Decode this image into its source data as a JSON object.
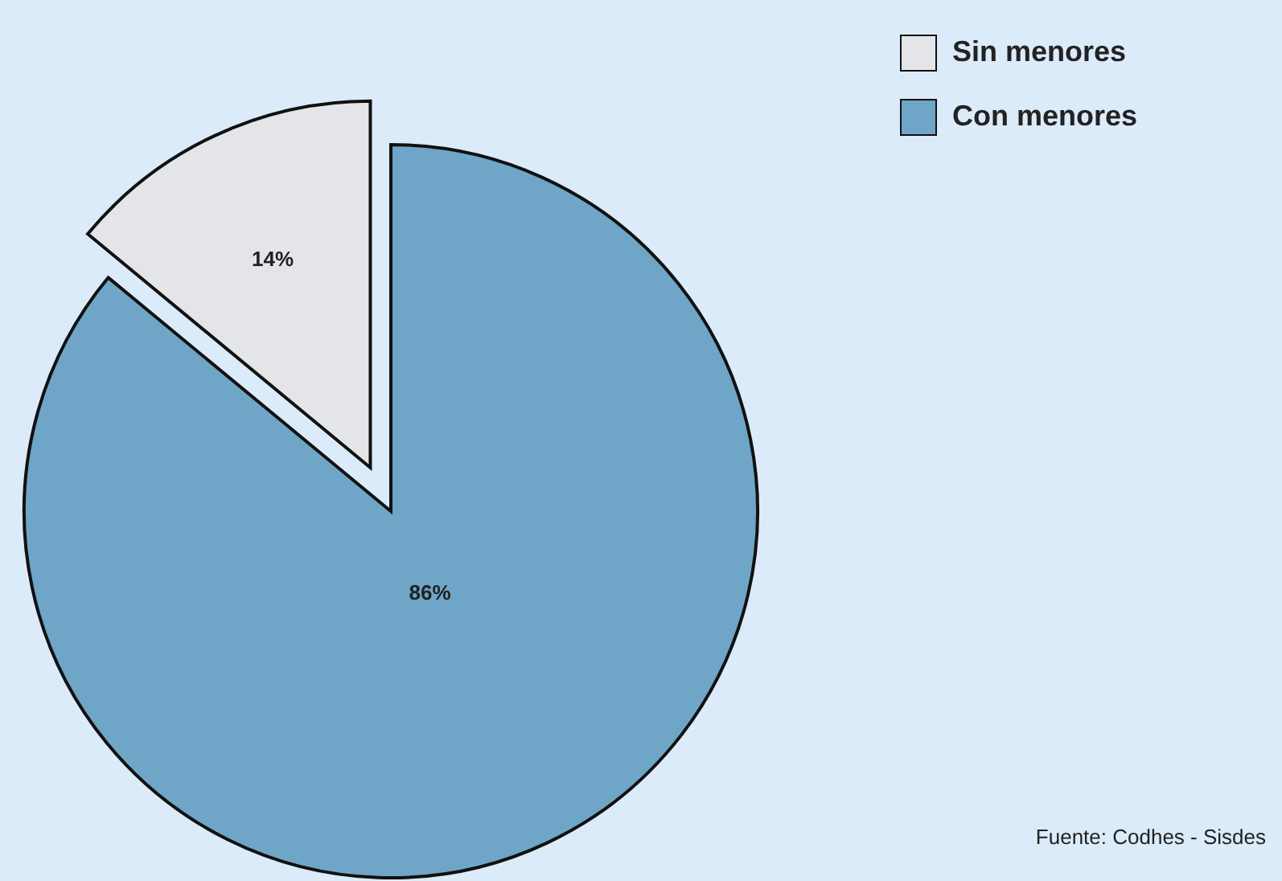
{
  "chart_data": {
    "type": "pie",
    "categories": [
      "Sin menores",
      "Con menores"
    ],
    "values": [
      14,
      86
    ],
    "value_labels": [
      "14%",
      "86%"
    ],
    "colors": [
      "#e3e5e8",
      "#6fa5c7"
    ],
    "legend": "top right",
    "annotations": [
      "Fuente: Codhes - Sisdes"
    ]
  }
}
